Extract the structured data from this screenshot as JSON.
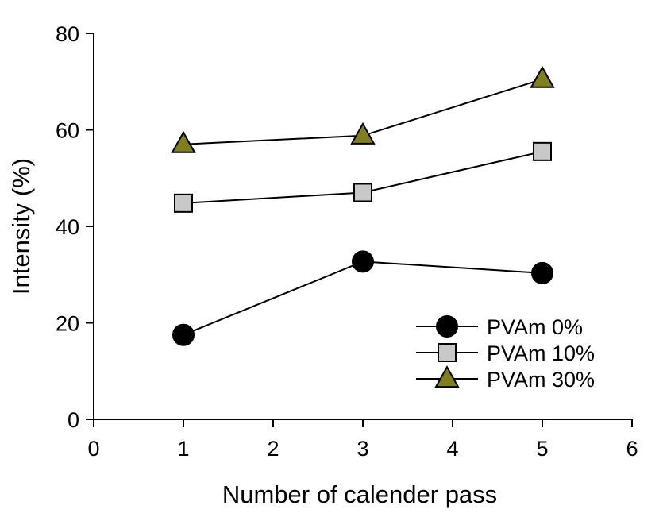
{
  "chart_data": {
    "type": "line",
    "title": "",
    "xlabel": "Number of calender pass",
    "ylabel": "Intensity (%)",
    "xlim": [
      0,
      6
    ],
    "ylim": [
      0,
      80
    ],
    "xticks": [
      "0",
      "1",
      "2",
      "3",
      "4",
      "5",
      "6"
    ],
    "yticks": [
      "0",
      "20",
      "40",
      "60",
      "80"
    ],
    "grid": false,
    "legend_position": "bottom-right",
    "x": [
      1,
      3,
      5
    ],
    "series": [
      {
        "name": "PVAm 0%",
        "marker": "circle",
        "color": "#000000",
        "values": [
          17.5,
          32.7,
          30.3
        ]
      },
      {
        "name": "PVAm 10%",
        "marker": "square",
        "color": "#c8c8c8",
        "values": [
          44.8,
          47.0,
          55.5
        ]
      },
      {
        "name": "PVAm 30%",
        "marker": "triangle",
        "color": "#7f7f1f",
        "values": [
          57.0,
          58.8,
          70.5
        ]
      }
    ]
  }
}
